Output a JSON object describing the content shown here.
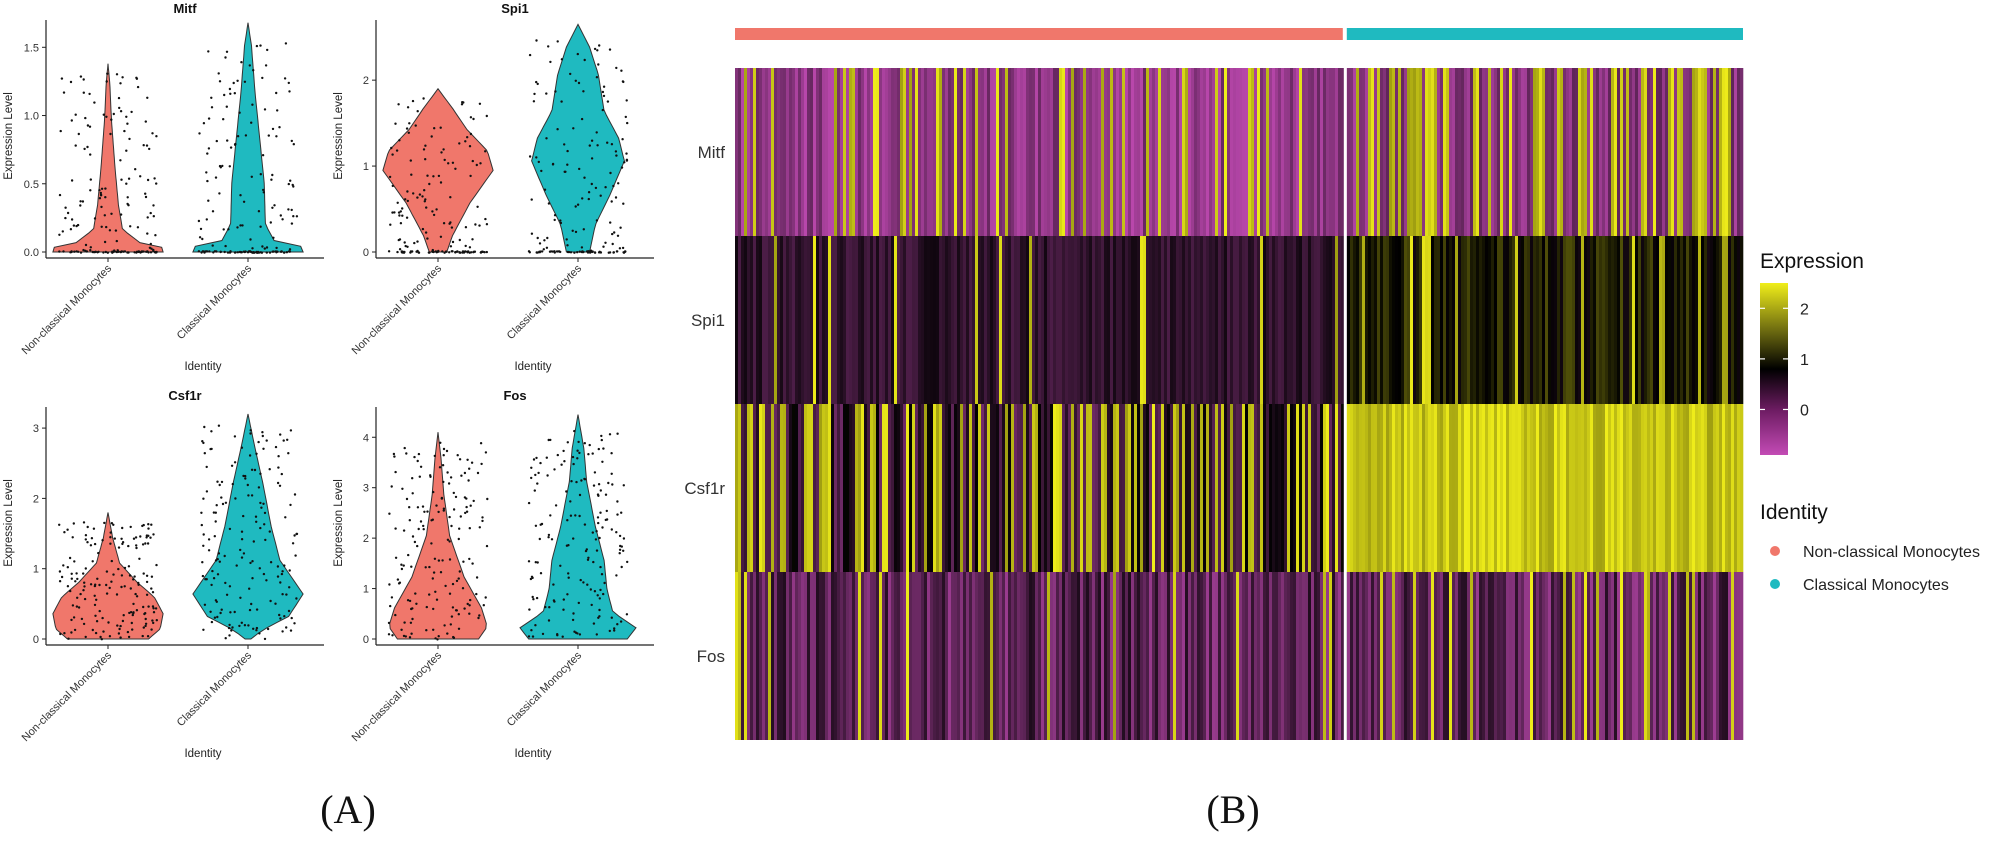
{
  "panel_labels": {
    "a": "(A)",
    "b": "(B)"
  },
  "colors": {
    "non_classical": "#F0776B",
    "classical": "#1FBAC0",
    "low": "#C34BB5",
    "mid": "#000000",
    "high": "#F0EE1A"
  },
  "violin": {
    "ylabel": "Expression Level",
    "xlabel": "Identity",
    "groups": [
      "Non-classical Monocytes",
      "Classical Monocytes"
    ]
  },
  "chart_data": [
    {
      "type": "violin",
      "title": "Mitf",
      "categories": [
        "Non-classical Monocytes",
        "Classical Monocytes"
      ],
      "ylim": [
        0,
        1.7
      ],
      "yticks": [
        "0.0",
        "0.5",
        "1.0",
        "1.5"
      ],
      "ytick_values": [
        0,
        0.5,
        1.0,
        1.5
      ],
      "max_values": [
        1.38,
        1.68
      ],
      "xlabel": "Identity",
      "ylabel": "Expression Level"
    },
    {
      "type": "violin",
      "title": "Spi1",
      "categories": [
        "Non-classical Monocytes",
        "Classical Monocytes"
      ],
      "ylim": [
        0,
        2.7
      ],
      "yticks": [
        "0",
        "1",
        "2"
      ],
      "ytick_values": [
        0,
        1,
        2
      ],
      "max_values": [
        1.9,
        2.65
      ],
      "xlabel": "Identity",
      "ylabel": "Expression Level"
    },
    {
      "type": "violin",
      "title": "Csf1r",
      "categories": [
        "Non-classical Monocytes",
        "Classical Monocytes"
      ],
      "ylim": [
        0,
        3.3
      ],
      "yticks": [
        "0",
        "1",
        "2",
        "3"
      ],
      "ytick_values": [
        0,
        1,
        2,
        3
      ],
      "max_values": [
        1.8,
        3.2
      ],
      "xlabel": "Identity",
      "ylabel": "Expression Level"
    },
    {
      "type": "violin",
      "title": "Fos",
      "categories": [
        "Non-classical Monocytes",
        "Classical Monocytes"
      ],
      "ylim": [
        0,
        4.6
      ],
      "yticks": [
        "0",
        "1",
        "2",
        "3",
        "4"
      ],
      "ytick_values": [
        0,
        1,
        2,
        3,
        4
      ],
      "max_values": [
        4.1,
        4.45
      ],
      "xlabel": "Identity",
      "ylabel": "Expression Level"
    },
    {
      "type": "heatmap",
      "genes": [
        "Mitf",
        "Spi1",
        "Csf1r",
        "Fos"
      ],
      "groups": [
        "Non-classical Monocytes",
        "Classical Monocytes"
      ],
      "group_fraction": [
        0.605,
        0.395
      ],
      "color_scale_ticks": [
        "2",
        "1",
        "0"
      ],
      "color_scale_values": [
        2,
        1,
        0
      ],
      "color_range": [
        -0.9,
        2.5
      ]
    }
  ],
  "legend": {
    "expression_title": "Expression",
    "identity_title": "Identity",
    "identity_items": [
      "Non-classical Monocytes",
      "Classical Monocytes"
    ]
  }
}
